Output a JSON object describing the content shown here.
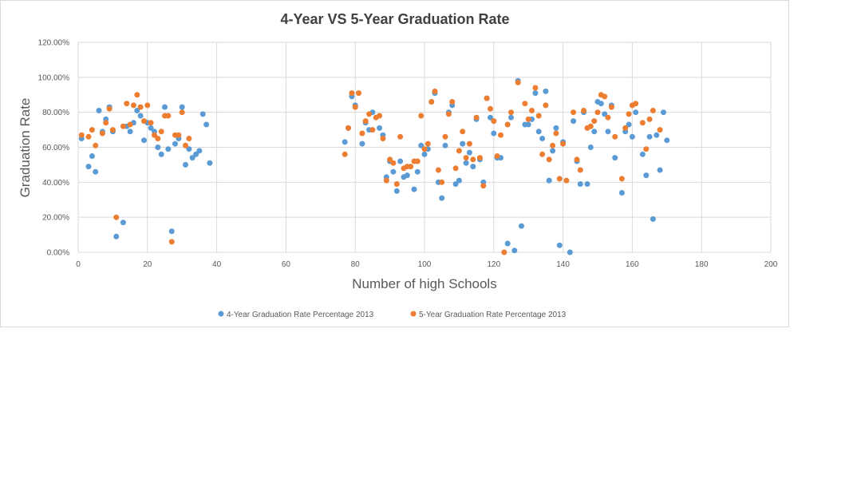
{
  "chart_data": {
    "type": "scatter",
    "title": "4-Year VS 5-Year Graduation  Rate",
    "xlabel": "Number of high Schools",
    "ylabel": "Graduation Rate",
    "xlim": [
      0,
      200
    ],
    "ylim": [
      0,
      1.2
    ],
    "x_ticks": [
      "0",
      "20",
      "40",
      "60",
      "80",
      "100",
      "120",
      "140",
      "160",
      "180",
      "200"
    ],
    "y_ticks": [
      "0.00%",
      "20.00%",
      "40.00%",
      "60.00%",
      "80.00%",
      "100.00%",
      "120.00%"
    ],
    "grid": true,
    "legend_position": "bottom",
    "series": [
      {
        "name": "4-Year Graduation Rate Percentage 2013",
        "color": "#5B9BD5",
        "points": [
          [
            1,
            0.65
          ],
          [
            3,
            0.49
          ],
          [
            4,
            0.55
          ],
          [
            5,
            0.46
          ],
          [
            6,
            0.81
          ],
          [
            7,
            0.69
          ],
          [
            8,
            0.76
          ],
          [
            9,
            0.83
          ],
          [
            10,
            0.69
          ],
          [
            11,
            0.09
          ],
          [
            13,
            0.17
          ],
          [
            14,
            0.72
          ],
          [
            15,
            0.69
          ],
          [
            16,
            0.74
          ],
          [
            17,
            0.81
          ],
          [
            18,
            0.78
          ],
          [
            19,
            0.64
          ],
          [
            20,
            0.74
          ],
          [
            21,
            0.71
          ],
          [
            22,
            0.69
          ],
          [
            23,
            0.6
          ],
          [
            24,
            0.56
          ],
          [
            25,
            0.83
          ],
          [
            26,
            0.59
          ],
          [
            27,
            0.12
          ],
          [
            28,
            0.62
          ],
          [
            29,
            0.65
          ],
          [
            30,
            0.83
          ],
          [
            31,
            0.5
          ],
          [
            32,
            0.59
          ],
          [
            33,
            0.54
          ],
          [
            34,
            0.56
          ],
          [
            35,
            0.58
          ],
          [
            36,
            0.79
          ],
          [
            37,
            0.73
          ],
          [
            38,
            0.51
          ],
          [
            77,
            0.63
          ],
          [
            78,
            0.71
          ],
          [
            79,
            0.89
          ],
          [
            80,
            0.84
          ],
          [
            82,
            0.62
          ],
          [
            83,
            0.74
          ],
          [
            84,
            0.7
          ],
          [
            85,
            0.8
          ],
          [
            87,
            0.71
          ],
          [
            88,
            0.67
          ],
          [
            89,
            0.43
          ],
          [
            90,
            0.52
          ],
          [
            91,
            0.46
          ],
          [
            92,
            0.35
          ],
          [
            93,
            0.52
          ],
          [
            94,
            0.43
          ],
          [
            95,
            0.44
          ],
          [
            97,
            0.36
          ],
          [
            98,
            0.46
          ],
          [
            99,
            0.61
          ],
          [
            100,
            0.56
          ],
          [
            101,
            0.59
          ],
          [
            102,
            0.86
          ],
          [
            103,
            0.91
          ],
          [
            104,
            0.4
          ],
          [
            105,
            0.31
          ],
          [
            106,
            0.61
          ],
          [
            107,
            0.8
          ],
          [
            108,
            0.84
          ],
          [
            109,
            0.39
          ],
          [
            110,
            0.41
          ],
          [
            111,
            0.62
          ],
          [
            112,
            0.51
          ],
          [
            113,
            0.57
          ],
          [
            114,
            0.49
          ],
          [
            115,
            0.76
          ],
          [
            116,
            0.53
          ],
          [
            117,
            0.4
          ],
          [
            118,
            0.88
          ],
          [
            119,
            0.77
          ],
          [
            120,
            0.68
          ],
          [
            121,
            0.54
          ],
          [
            122,
            0.54
          ],
          [
            124,
            0.05
          ],
          [
            125,
            0.77
          ],
          [
            126,
            0.01
          ],
          [
            127,
            0.98
          ],
          [
            128,
            0.15
          ],
          [
            129,
            0.73
          ],
          [
            130,
            0.73
          ],
          [
            131,
            0.76
          ],
          [
            132,
            0.91
          ],
          [
            133,
            0.69
          ],
          [
            134,
            0.65
          ],
          [
            135,
            0.92
          ],
          [
            136,
            0.41
          ],
          [
            137,
            0.58
          ],
          [
            138,
            0.71
          ],
          [
            139,
            0.04
          ],
          [
            140,
            0.63
          ],
          [
            142,
            0.0
          ],
          [
            143,
            0.75
          ],
          [
            144,
            0.52
          ],
          [
            145,
            0.39
          ],
          [
            146,
            0.8
          ],
          [
            147,
            0.39
          ],
          [
            148,
            0.6
          ],
          [
            149,
            0.69
          ],
          [
            150,
            0.86
          ],
          [
            151,
            0.85
          ],
          [
            152,
            0.79
          ],
          [
            153,
            0.69
          ],
          [
            154,
            0.84
          ],
          [
            155,
            0.54
          ],
          [
            157,
            0.34
          ],
          [
            158,
            0.69
          ],
          [
            159,
            0.73
          ],
          [
            160,
            0.66
          ],
          [
            161,
            0.8
          ],
          [
            163,
            0.56
          ],
          [
            164,
            0.44
          ],
          [
            165,
            0.66
          ],
          [
            166,
            0.19
          ],
          [
            167,
            0.67
          ],
          [
            168,
            0.47
          ],
          [
            169,
            0.8
          ],
          [
            170,
            0.64
          ]
        ]
      },
      {
        "name": "5-Year Graduation Rate Percentage 2013",
        "color": "#ED7D31",
        "points": [
          [
            1,
            0.67
          ],
          [
            3,
            0.66
          ],
          [
            4,
            0.7
          ],
          [
            5,
            0.61
          ],
          [
            7,
            0.68
          ],
          [
            8,
            0.74
          ],
          [
            9,
            0.82
          ],
          [
            10,
            0.7
          ],
          [
            11,
            0.2
          ],
          [
            13,
            0.72
          ],
          [
            14,
            0.85
          ],
          [
            15,
            0.73
          ],
          [
            16,
            0.84
          ],
          [
            17,
            0.9
          ],
          [
            18,
            0.83
          ],
          [
            19,
            0.75
          ],
          [
            20,
            0.84
          ],
          [
            21,
            0.74
          ],
          [
            22,
            0.67
          ],
          [
            23,
            0.65
          ],
          [
            24,
            0.69
          ],
          [
            25,
            0.78
          ],
          [
            26,
            0.78
          ],
          [
            27,
            0.06
          ],
          [
            28,
            0.67
          ],
          [
            29,
            0.67
          ],
          [
            30,
            0.8
          ],
          [
            31,
            0.61
          ],
          [
            32,
            0.65
          ],
          [
            77,
            0.56
          ],
          [
            78,
            0.71
          ],
          [
            79,
            0.91
          ],
          [
            80,
            0.83
          ],
          [
            81,
            0.91
          ],
          [
            82,
            0.68
          ],
          [
            83,
            0.75
          ],
          [
            84,
            0.79
          ],
          [
            85,
            0.7
          ],
          [
            86,
            0.77
          ],
          [
            87,
            0.78
          ],
          [
            88,
            0.65
          ],
          [
            89,
            0.41
          ],
          [
            90,
            0.53
          ],
          [
            91,
            0.51
          ],
          [
            92,
            0.39
          ],
          [
            93,
            0.66
          ],
          [
            94,
            0.48
          ],
          [
            95,
            0.49
          ],
          [
            96,
            0.49
          ],
          [
            97,
            0.52
          ],
          [
            98,
            0.52
          ],
          [
            99,
            0.78
          ],
          [
            100,
            0.59
          ],
          [
            101,
            0.62
          ],
          [
            102,
            0.86
          ],
          [
            103,
            0.92
          ],
          [
            104,
            0.47
          ],
          [
            105,
            0.4
          ],
          [
            106,
            0.66
          ],
          [
            107,
            0.79
          ],
          [
            108,
            0.86
          ],
          [
            109,
            0.48
          ],
          [
            110,
            0.58
          ],
          [
            111,
            0.69
          ],
          [
            112,
            0.54
          ],
          [
            113,
            0.62
          ],
          [
            114,
            0.53
          ],
          [
            115,
            0.77
          ],
          [
            116,
            0.54
          ],
          [
            117,
            0.38
          ],
          [
            118,
            0.88
          ],
          [
            119,
            0.82
          ],
          [
            120,
            0.75
          ],
          [
            121,
            0.55
          ],
          [
            122,
            0.67
          ],
          [
            123,
            0.0
          ],
          [
            124,
            0.73
          ],
          [
            125,
            0.8
          ],
          [
            127,
            0.97
          ],
          [
            129,
            0.85
          ],
          [
            130,
            0.76
          ],
          [
            131,
            0.81
          ],
          [
            132,
            0.94
          ],
          [
            133,
            0.78
          ],
          [
            134,
            0.56
          ],
          [
            135,
            0.84
          ],
          [
            136,
            0.53
          ],
          [
            137,
            0.61
          ],
          [
            138,
            0.68
          ],
          [
            139,
            0.42
          ],
          [
            140,
            0.62
          ],
          [
            141,
            0.41
          ],
          [
            143,
            0.8
          ],
          [
            144,
            0.53
          ],
          [
            145,
            0.47
          ],
          [
            146,
            0.81
          ],
          [
            147,
            0.71
          ],
          [
            148,
            0.72
          ],
          [
            149,
            0.75
          ],
          [
            150,
            0.8
          ],
          [
            151,
            0.9
          ],
          [
            152,
            0.89
          ],
          [
            153,
            0.77
          ],
          [
            154,
            0.83
          ],
          [
            155,
            0.66
          ],
          [
            157,
            0.42
          ],
          [
            158,
            0.71
          ],
          [
            159,
            0.79
          ],
          [
            160,
            0.84
          ],
          [
            161,
            0.85
          ],
          [
            163,
            0.74
          ],
          [
            164,
            0.59
          ],
          [
            165,
            0.76
          ],
          [
            166,
            0.81
          ],
          [
            168,
            0.7
          ]
        ]
      }
    ]
  }
}
